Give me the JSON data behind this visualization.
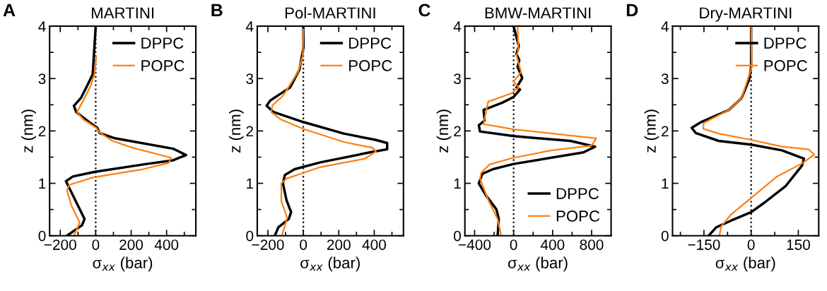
{
  "chart_data": [
    {
      "type": "line",
      "title": "MARTINI",
      "annotations": [
        "A"
      ],
      "xlabel": "σ$_{xx}$ (bar)",
      "ylabel": "z (nm)",
      "xlim": [
        -260,
        565
      ],
      "ylim": [
        0,
        4
      ],
      "xticks": [
        -200,
        {
          "value": -100,
          "label": null
        },
        0,
        {
          "value": 100,
          "label": null
        },
        200,
        {
          "value": 300,
          "label": null
        },
        400,
        {
          "value": 500,
          "label": null
        }
      ],
      "yticks": [
        0,
        {
          "value": 0.5,
          "label": null
        },
        1,
        {
          "value": 1.5,
          "label": null
        },
        2,
        {
          "value": 2.5,
          "label": null
        },
        3,
        {
          "value": 3.5,
          "label": null
        },
        4
      ],
      "grid": false,
      "legend": "top right",
      "ref_lines": [
        {
          "axis": "x",
          "value": 0,
          "color": "#000000",
          "line_style": "dotted"
        }
      ],
      "series": [
        {
          "name": "DPPC",
          "color": "#000000",
          "x": [
            0,
            -17,
            -50,
            -83,
            -123,
            -110,
            -37,
            9,
            22,
            109,
            438,
            510,
            436,
            267,
            -4,
            -129,
            -168,
            -63,
            -77,
            -162
          ],
          "values": [
            4,
            3.08,
            2.85,
            2.63,
            2.48,
            2.36,
            2.17,
            2.06,
            1.96,
            1.86,
            1.66,
            1.54,
            1.44,
            1.36,
            1.22,
            1.13,
            1.04,
            0.32,
            0.2,
            0
          ]
        },
        {
          "name": "POPC",
          "color": "#ff7f0e",
          "x": [
            3,
            -7,
            -30,
            -70,
            -106,
            -70,
            3,
            22,
            95,
            207,
            425,
            412,
            267,
            108,
            -17,
            -149,
            -162,
            -136,
            -90,
            -123
          ],
          "values": [
            3.42,
            3.08,
            2.85,
            2.58,
            2.36,
            2.22,
            2.06,
            1.97,
            1.81,
            1.68,
            1.49,
            1.39,
            1.27,
            1.18,
            1.11,
            0.97,
            0.86,
            0.57,
            0.25,
            0
          ]
        }
      ]
    },
    {
      "type": "line",
      "title": "Pol-MARTINI",
      "annotations": [
        "B"
      ],
      "xlabel": "σ$_{xx}$ (bar)",
      "ylabel": "z (nm)",
      "xlim": [
        -260,
        565
      ],
      "ylim": [
        0,
        4
      ],
      "xticks": [
        -200,
        {
          "value": -100,
          "label": null
        },
        0,
        {
          "value": 100,
          "label": null
        },
        200,
        {
          "value": 300,
          "label": null
        },
        400,
        {
          "value": 500,
          "label": null
        }
      ],
      "yticks": [
        0,
        {
          "value": 0.5,
          "label": null
        },
        1,
        {
          "value": 1.5,
          "label": null
        },
        2,
        {
          "value": 2.5,
          "label": null
        },
        3,
        {
          "value": 3.5,
          "label": null
        },
        4
      ],
      "grid": false,
      "legend": "top right",
      "ref_lines": [
        {
          "axis": "x",
          "value": 0,
          "color": "#000000",
          "line_style": "dotted"
        }
      ],
      "series": [
        {
          "name": "DPPC",
          "color": "#000000",
          "x": [
            0,
            1,
            -22,
            -75,
            -187,
            -207,
            -168,
            0,
            228,
            407,
            473,
            473,
            374,
            96,
            -49,
            -104,
            -115,
            -95,
            -69,
            -82,
            -141,
            -161
          ],
          "values": [
            4,
            3.6,
            3.17,
            2.83,
            2.58,
            2.48,
            2.36,
            2.17,
            1.95,
            1.83,
            1.77,
            1.65,
            1.59,
            1.4,
            1.27,
            1.16,
            1.0,
            0.68,
            0.45,
            0.32,
            0.16,
            0
          ]
        },
        {
          "name": "POPC",
          "color": "#ff7f0e",
          "x": [
            0,
            -3,
            -29,
            -115,
            -174,
            -181,
            -128,
            0,
            228,
            389,
            410,
            347,
            96,
            0,
            -95,
            -124,
            -124,
            -91,
            -121
          ],
          "values": [
            3.94,
            3.44,
            3.13,
            2.67,
            2.49,
            2.36,
            2.22,
            2.04,
            1.79,
            1.68,
            1.61,
            1.47,
            1.31,
            1.2,
            1.09,
            1.0,
            0.66,
            0.34,
            0
          ]
        }
      ]
    },
    {
      "type": "line",
      "title": "BMW-MARTINI",
      "annotations": [
        "C"
      ],
      "xlabel": "σ$_{xx}$ (bar)",
      "ylabel": "z (nm)",
      "xlim": [
        -500,
        1000
      ],
      "ylim": [
        0,
        4
      ],
      "xticks": [
        -400,
        {
          "value": -200,
          "label": null
        },
        0,
        {
          "value": 200,
          "label": null
        },
        400,
        {
          "value": 600,
          "label": null
        },
        800
      ],
      "yticks": [
        0,
        {
          "value": 0.5,
          "label": null
        },
        1,
        {
          "value": 1.5,
          "label": null
        },
        2,
        {
          "value": 2.5,
          "label": null
        },
        3,
        {
          "value": 3.5,
          "label": null
        },
        4
      ],
      "grid": false,
      "legend": "bottom right",
      "ref_lines": [
        {
          "axis": "x",
          "value": 0,
          "color": "#000000",
          "line_style": "dotted"
        }
      ],
      "series": [
        {
          "name": "DPPC",
          "color": "#000000",
          "x": [
            0,
            53,
            29,
            58,
            41,
            89,
            29,
            65,
            0,
            -116,
            -308,
            -297,
            -357,
            -345,
            5,
            583,
            836,
            716,
            0,
            -212,
            -321,
            -357,
            -284,
            -176,
            -152,
            -164
          ],
          "values": [
            4,
            3.62,
            3.47,
            3.35,
            3.22,
            3.01,
            2.83,
            2.79,
            2.65,
            2.54,
            2.4,
            2.2,
            2.11,
            1.99,
            1.9,
            1.81,
            1.7,
            1.59,
            1.37,
            1.27,
            1.18,
            1.0,
            0.77,
            0.5,
            0.32,
            0
          ]
        },
        {
          "name": "POPC",
          "color": "#ff7f0e",
          "x": [
            41,
            48,
            29,
            77,
            0,
            53,
            -19,
            -260,
            -272,
            -308,
            0,
            848,
            800,
            390,
            0,
            -248,
            -333,
            -345,
            -260,
            -164,
            -128
          ],
          "values": [
            4,
            3.53,
            3.44,
            3.13,
            2.94,
            2.83,
            2.72,
            2.56,
            2.47,
            2.13,
            2.03,
            1.86,
            1.72,
            1.63,
            1.49,
            1.36,
            1.2,
            1.09,
            0.68,
            0.32,
            0
          ]
        }
      ]
    },
    {
      "type": "line",
      "title": "Dry-MARTINI",
      "annotations": [
        "D"
      ],
      "xlabel": "σ$_{xx}$ (bar)",
      "ylabel": "z (nm)",
      "xlim": [
        -250,
        215
      ],
      "ylim": [
        0,
        4
      ],
      "xticks": [
        {
          "value": -225,
          "label": null
        },
        -150,
        {
          "value": -75,
          "label": null
        },
        0,
        {
          "value": 75,
          "label": null
        },
        150
      ],
      "yticks": [
        0,
        {
          "value": 0.5,
          "label": null
        },
        1,
        {
          "value": 1.5,
          "label": null
        },
        2,
        {
          "value": 2.5,
          "label": null
        },
        3,
        {
          "value": 3.5,
          "label": null
        },
        4
      ],
      "grid": false,
      "legend": "top right",
      "ref_lines": [
        {
          "axis": "x",
          "value": 0,
          "color": "#000000",
          "line_style": "dotted"
        }
      ],
      "series": [
        {
          "name": "DPPC",
          "color": "#000000",
          "x": [
            0,
            0,
            -6,
            -30,
            -71,
            -159,
            -189,
            -176,
            -103,
            0,
            98,
            168,
            162,
            110,
            42,
            0,
            -63,
            -111,
            -135
          ],
          "values": [
            4,
            3.22,
            2.99,
            2.63,
            2.4,
            2.17,
            2.06,
            1.96,
            1.81,
            1.74,
            1.63,
            1.47,
            1.34,
            0.95,
            0.63,
            0.45,
            0.29,
            0.16,
            0
          ]
        },
        {
          "name": "POPC",
          "color": "#ff7f0e",
          "x": [
            0,
            2,
            -30,
            -71,
            -151,
            -152,
            -103,
            0,
            98,
            182,
            201,
            162,
            82,
            0,
            -63,
            -95,
            -101
          ],
          "values": [
            4,
            3.22,
            2.63,
            2.4,
            2.15,
            2.04,
            1.95,
            1.83,
            1.7,
            1.65,
            1.55,
            1.38,
            1.13,
            0.72,
            0.41,
            0.18,
            0
          ]
        }
      ]
    }
  ]
}
